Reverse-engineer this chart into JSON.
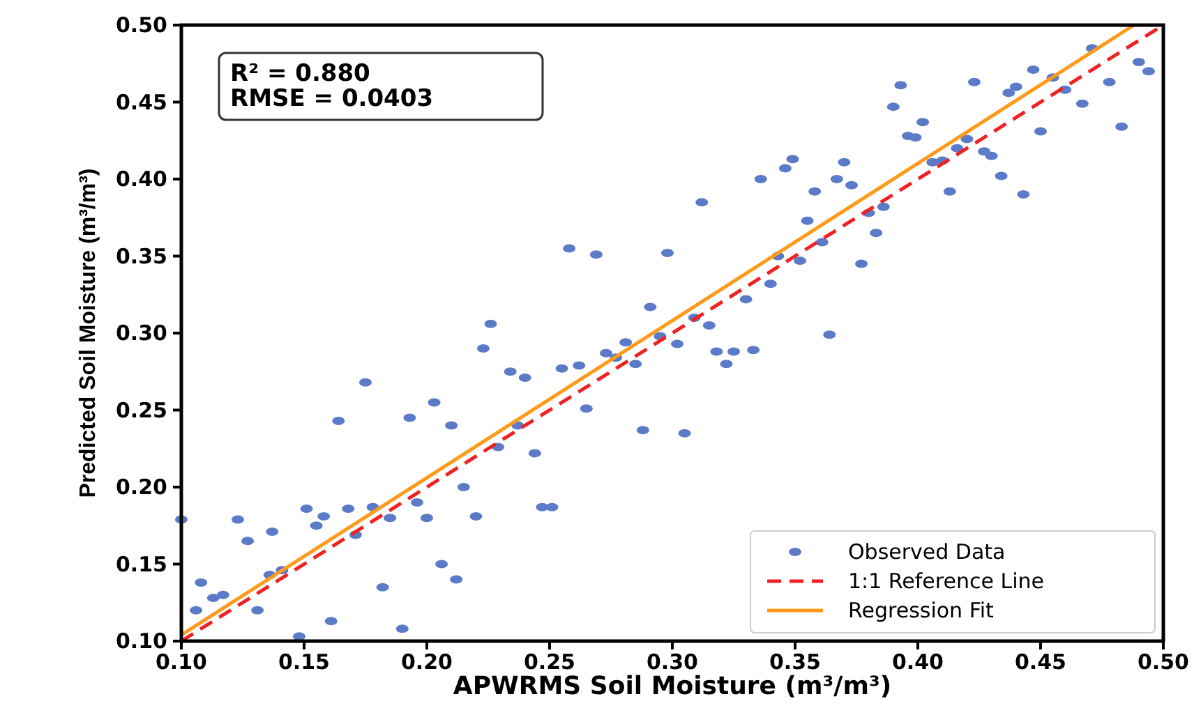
{
  "chart_data": {
    "type": "scatter",
    "xlabel": "APWRMS Soil Moisture (m³/m³)",
    "ylabel": "Predicted Soil Moisture (m³/m³)",
    "xlim": [
      0.1,
      0.5
    ],
    "ylim": [
      0.1,
      0.5
    ],
    "xticks": [
      {
        "value": 0.1,
        "label": "0.10"
      },
      {
        "value": 0.15,
        "label": "0.15"
      },
      {
        "value": 0.2,
        "label": "0.20"
      },
      {
        "value": 0.25,
        "label": "0.25"
      },
      {
        "value": 0.3,
        "label": "0.30"
      },
      {
        "value": 0.35,
        "label": "0.35"
      },
      {
        "value": 0.4,
        "label": "0.40"
      },
      {
        "value": 0.45,
        "label": "0.45"
      },
      {
        "value": 0.5,
        "label": "0.50"
      }
    ],
    "yticks": [
      {
        "value": 0.1,
        "label": "0.10"
      },
      {
        "value": 0.15,
        "label": "0.15"
      },
      {
        "value": 0.2,
        "label": "0.20"
      },
      {
        "value": 0.25,
        "label": "0.25"
      },
      {
        "value": 0.3,
        "label": "0.30"
      },
      {
        "value": 0.35,
        "label": "0.35"
      },
      {
        "value": 0.4,
        "label": "0.40"
      },
      {
        "value": 0.45,
        "label": "0.45"
      },
      {
        "value": 0.5,
        "label": "0.50"
      }
    ],
    "annotations": [
      "R² = 0.880",
      "RMSE = 0.0403"
    ],
    "legend": "bottom right",
    "grid": false,
    "marker": "circle",
    "series": [
      {
        "name": "Observed Data",
        "color": "#5b7bc9",
        "x": [
          0.1,
          0.106,
          0.108,
          0.113,
          0.117,
          0.123,
          0.127,
          0.131,
          0.136,
          0.137,
          0.141,
          0.148,
          0.151,
          0.155,
          0.158,
          0.161,
          0.164,
          0.168,
          0.171,
          0.175,
          0.178,
          0.182,
          0.185,
          0.19,
          0.193,
          0.196,
          0.2,
          0.203,
          0.206,
          0.21,
          0.212,
          0.215,
          0.22,
          0.223,
          0.226,
          0.229,
          0.234,
          0.237,
          0.24,
          0.244,
          0.247,
          0.251,
          0.255,
          0.258,
          0.262,
          0.265,
          0.269,
          0.273,
          0.277,
          0.281,
          0.285,
          0.288,
          0.291,
          0.295,
          0.298,
          0.302,
          0.305,
          0.309,
          0.312,
          0.315,
          0.318,
          0.322,
          0.325,
          0.33,
          0.333,
          0.336,
          0.34,
          0.343,
          0.346,
          0.349,
          0.352,
          0.355,
          0.358,
          0.361,
          0.364,
          0.367,
          0.37,
          0.373,
          0.377,
          0.38,
          0.383,
          0.386,
          0.39,
          0.393,
          0.396,
          0.399,
          0.402,
          0.406,
          0.41,
          0.413,
          0.416,
          0.42,
          0.423,
          0.427,
          0.43,
          0.434,
          0.437,
          0.44,
          0.443,
          0.447,
          0.45,
          0.455,
          0.46,
          0.467,
          0.471,
          0.478,
          0.483,
          0.49,
          0.494
        ],
        "values": [
          0.179,
          0.12,
          0.138,
          0.128,
          0.13,
          0.179,
          0.165,
          0.12,
          0.143,
          0.171,
          0.146,
          0.103,
          0.186,
          0.175,
          0.181,
          0.113,
          0.243,
          0.186,
          0.169,
          0.268,
          0.187,
          0.135,
          0.18,
          0.108,
          0.245,
          0.19,
          0.18,
          0.255,
          0.15,
          0.24,
          0.14,
          0.2,
          0.181,
          0.29,
          0.306,
          0.226,
          0.275,
          0.24,
          0.271,
          0.222,
          0.187,
          0.187,
          0.277,
          0.355,
          0.279,
          0.251,
          0.351,
          0.287,
          0.284,
          0.294,
          0.28,
          0.237,
          0.317,
          0.298,
          0.352,
          0.293,
          0.235,
          0.31,
          0.385,
          0.305,
          0.288,
          0.28,
          0.288,
          0.322,
          0.289,
          0.4,
          0.332,
          0.35,
          0.407,
          0.413,
          0.347,
          0.373,
          0.392,
          0.359,
          0.299,
          0.4,
          0.411,
          0.396,
          0.345,
          0.378,
          0.365,
          0.382,
          0.447,
          0.461,
          0.428,
          0.427,
          0.437,
          0.411,
          0.412,
          0.392,
          0.42,
          0.426,
          0.463,
          0.418,
          0.415,
          0.402,
          0.456,
          0.46,
          0.39,
          0.471,
          0.431,
          0.466,
          0.458,
          0.449,
          0.485,
          0.463,
          0.434,
          0.476,
          0.47
        ]
      },
      {
        "name": "1:1 Reference Line",
        "type": "line",
        "color": "#ee2222",
        "line_style": "dashed",
        "marker": "none",
        "x": [
          0.1,
          0.5
        ],
        "values": [
          0.1,
          0.5
        ]
      },
      {
        "name": "Regression Fit",
        "type": "line",
        "color": "#ff9a1a",
        "line_style": "solid",
        "marker": "none",
        "x": [
          0.1,
          0.488
        ],
        "values": [
          0.104,
          0.5
        ]
      }
    ]
  }
}
